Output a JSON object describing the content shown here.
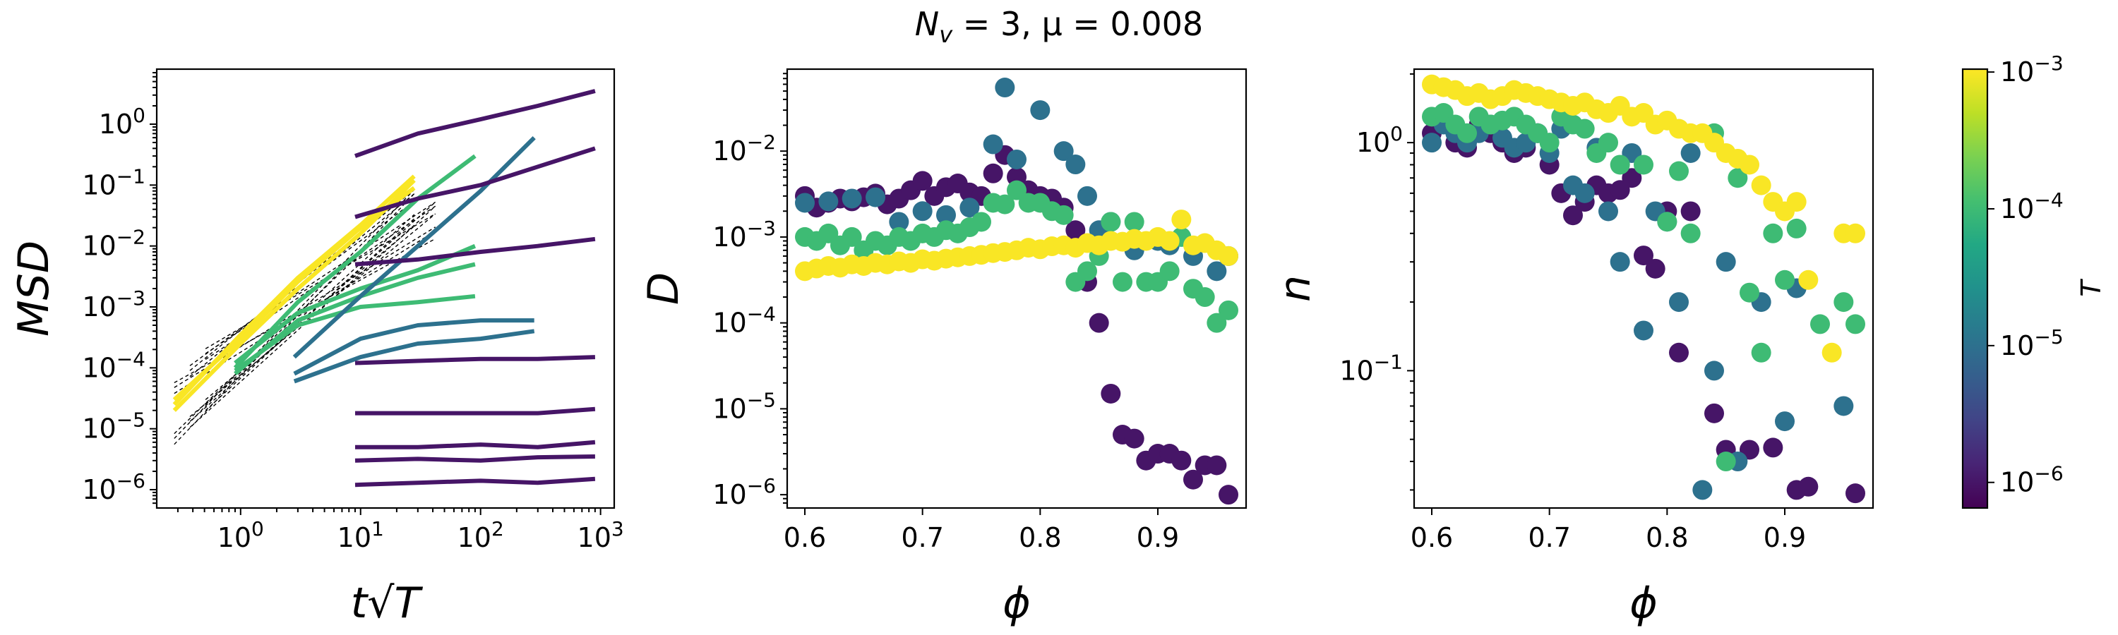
{
  "figure": {
    "title": "N_v = 3, μ = 0.008"
  },
  "colorbar": {
    "label": "T",
    "ticks": [
      "10^-3",
      "10^-4",
      "10^-5",
      "10^-6"
    ],
    "range": [
      6.5e-07,
      0.00105
    ],
    "palette": [
      "#440154",
      "#482475",
      "#414487",
      "#355f8d",
      "#2a788e",
      "#21918c",
      "#22a884",
      "#44bf70",
      "#7ad151",
      "#bddf26",
      "#fde725"
    ]
  },
  "chart_data": [
    {
      "type": "line",
      "name": "msd-panel",
      "xlabel": "t√T",
      "ylabel": "MSD",
      "xscale": "log",
      "yscale": "log",
      "xlim": [
        0.2,
        1300
      ],
      "ylim": [
        5e-07,
        8
      ],
      "xticks": [
        1,
        10,
        100,
        1000
      ],
      "yticks": [
        1e-06,
        1e-05,
        0.0001,
        0.001,
        0.01,
        0.1,
        1
      ],
      "series": [
        {
          "T": 0.001,
          "x": [
            0.28,
            1,
            3,
            10,
            28
          ],
          "y": [
            2e-05,
            0.00025,
            0.002,
            0.016,
            0.12
          ]
        },
        {
          "T": 0.001,
          "x": [
            0.28,
            1,
            3,
            10,
            28
          ],
          "y": [
            3e-05,
            0.0003,
            0.0026,
            0.02,
            0.09
          ]
        },
        {
          "T": 0.001,
          "x": [
            0.28,
            1,
            3,
            10,
            28
          ],
          "y": [
            2.5e-05,
            0.00035,
            0.003,
            0.022,
            0.14
          ]
        },
        {
          "T": 0.0001,
          "x": [
            0.9,
            3,
            10,
            30,
            90
          ],
          "y": [
            0.0001,
            0.0012,
            0.008,
            0.06,
            0.3
          ]
        },
        {
          "T": 0.0001,
          "x": [
            0.9,
            3,
            10,
            30,
            90
          ],
          "y": [
            8e-05,
            0.0006,
            0.0015,
            0.003,
            0.005
          ]
        },
        {
          "T": 0.0001,
          "x": [
            0.9,
            3,
            10,
            30,
            90
          ],
          "y": [
            0.00012,
            0.0008,
            0.002,
            0.004,
            0.01
          ]
        },
        {
          "T": 0.0001,
          "x": [
            0.9,
            3,
            10,
            30,
            90
          ],
          "y": [
            9e-05,
            0.0005,
            0.001,
            0.0012,
            0.0015
          ]
        },
        {
          "T": 1e-05,
          "x": [
            2.8,
            10,
            30,
            100,
            280
          ],
          "y": [
            0.00015,
            0.0015,
            0.01,
            0.08,
            0.6
          ]
        },
        {
          "T": 1e-05,
          "x": [
            2.8,
            10,
            30,
            100,
            280
          ],
          "y": [
            6e-05,
            0.00015,
            0.00025,
            0.0003,
            0.0004
          ]
        },
        {
          "T": 1e-05,
          "x": [
            2.8,
            10,
            30,
            100,
            280
          ],
          "y": [
            8e-05,
            0.0003,
            0.0005,
            0.0006,
            0.0006
          ]
        },
        {
          "T": 1e-06,
          "x": [
            9,
            30,
            100,
            300,
            900
          ],
          "y": [
            0.3,
            0.7,
            1.2,
            2,
            3.5
          ]
        },
        {
          "T": 1e-06,
          "x": [
            9,
            30,
            100,
            300,
            900
          ],
          "y": [
            0.03,
            0.06,
            0.1,
            0.2,
            0.4
          ]
        },
        {
          "T": 1e-06,
          "x": [
            9,
            30,
            100,
            300,
            900
          ],
          "y": [
            0.005,
            0.006,
            0.008,
            0.01,
            0.013
          ]
        },
        {
          "T": 1e-06,
          "x": [
            9,
            30,
            100,
            300,
            900
          ],
          "y": [
            0.00012,
            0.00013,
            0.00014,
            0.00014,
            0.00015
          ]
        },
        {
          "T": 1e-06,
          "x": [
            9,
            30,
            100,
            300,
            900
          ],
          "y": [
            1.8e-05,
            1.8e-05,
            1.8e-05,
            1.8e-05,
            2.1e-05
          ]
        },
        {
          "T": 1e-06,
          "x": [
            9,
            30,
            100,
            300,
            900
          ],
          "y": [
            5e-06,
            5e-06,
            5.5e-06,
            5e-06,
            6e-06
          ]
        },
        {
          "T": 1e-06,
          "x": [
            9,
            30,
            100,
            300,
            900
          ],
          "y": [
            3e-06,
            3.2e-06,
            3e-06,
            3.4e-06,
            3.5e-06
          ]
        },
        {
          "T": 1e-06,
          "x": [
            9,
            30,
            100,
            300,
            900
          ],
          "y": [
            1.2e-06,
            1.3e-06,
            1.4e-06,
            1.3e-06,
            1.5e-06
          ]
        }
      ]
    },
    {
      "type": "scatter",
      "name": "d-panel",
      "xlabel": "ϕ",
      "ylabel": "D",
      "xscale": "linear",
      "yscale": "log",
      "xlim": [
        0.585,
        0.975
      ],
      "ylim": [
        7e-07,
        0.09
      ],
      "xticks": [
        0.6,
        0.7,
        0.8,
        0.9
      ],
      "yticks": [
        1e-06,
        1e-05,
        0.0001,
        0.001,
        0.01
      ],
      "series": [
        {
          "T": 1e-06,
          "x": [
            0.6,
            0.61,
            0.62,
            0.63,
            0.64,
            0.65,
            0.66,
            0.67,
            0.68,
            0.69,
            0.7,
            0.71,
            0.72,
            0.73,
            0.74,
            0.75,
            0.76,
            0.77,
            0.78,
            0.79,
            0.8,
            0.81,
            0.82,
            0.83,
            0.84,
            0.85,
            0.86,
            0.87,
            0.88,
            0.89,
            0.9,
            0.91,
            0.92,
            0.93,
            0.94,
            0.95,
            0.96
          ],
          "y": [
            0.003,
            0.0022,
            0.0025,
            0.0028,
            0.0026,
            0.0029,
            0.0032,
            0.0024,
            0.0028,
            0.0035,
            0.0045,
            0.003,
            0.0038,
            0.0042,
            0.0033,
            0.003,
            0.0055,
            0.009,
            0.005,
            0.0035,
            0.003,
            0.0028,
            0.0022,
            0.0012,
            0.0003,
            0.0001,
            1.5e-05,
            5e-06,
            4.5e-06,
            2.5e-06,
            3e-06,
            3e-06,
            2.5e-06,
            1.5e-06,
            2.2e-06,
            2.2e-06,
            1e-06
          ]
        },
        {
          "T": 1e-05,
          "x": [
            0.6,
            0.62,
            0.64,
            0.66,
            0.68,
            0.7,
            0.72,
            0.74,
            0.76,
            0.77,
            0.78,
            0.8,
            0.82,
            0.83,
            0.84,
            0.85,
            0.86,
            0.88,
            0.9,
            0.91,
            0.93,
            0.95,
            0.96
          ],
          "y": [
            0.0025,
            0.0026,
            0.0028,
            0.0029,
            0.0015,
            0.002,
            0.0018,
            0.0022,
            0.012,
            0.055,
            0.008,
            0.03,
            0.01,
            0.007,
            0.003,
            0.0012,
            0.0015,
            0.0007,
            0.0009,
            0.0008,
            0.0006,
            0.0004,
            0.0006
          ]
        },
        {
          "T": 0.0001,
          "x": [
            0.6,
            0.61,
            0.62,
            0.63,
            0.64,
            0.65,
            0.66,
            0.67,
            0.68,
            0.69,
            0.7,
            0.71,
            0.72,
            0.73,
            0.74,
            0.75,
            0.76,
            0.77,
            0.78,
            0.79,
            0.8,
            0.81,
            0.82,
            0.83,
            0.84,
            0.85,
            0.86,
            0.87,
            0.88,
            0.89,
            0.9,
            0.91,
            0.92,
            0.93,
            0.94,
            0.95,
            0.96
          ],
          "y": [
            0.001,
            0.0009,
            0.0011,
            0.0008,
            0.001,
            0.0007,
            0.0009,
            0.0008,
            0.001,
            0.0009,
            0.0011,
            0.001,
            0.0012,
            0.0011,
            0.0013,
            0.0015,
            0.0025,
            0.0024,
            0.0035,
            0.0025,
            0.0025,
            0.002,
            0.0018,
            0.0003,
            0.0004,
            0.0006,
            0.0015,
            0.0003,
            0.0015,
            0.0003,
            0.0003,
            0.0004,
            0.001,
            0.00025,
            0.0002,
            0.0001,
            0.00014
          ]
        },
        {
          "T": 0.001,
          "x": [
            0.6,
            0.61,
            0.62,
            0.63,
            0.64,
            0.65,
            0.66,
            0.67,
            0.68,
            0.69,
            0.7,
            0.71,
            0.72,
            0.73,
            0.74,
            0.75,
            0.76,
            0.77,
            0.78,
            0.79,
            0.8,
            0.81,
            0.82,
            0.83,
            0.84,
            0.85,
            0.86,
            0.87,
            0.88,
            0.89,
            0.9,
            0.91,
            0.92,
            0.93,
            0.94,
            0.95,
            0.96
          ],
          "y": [
            0.0004,
            0.00043,
            0.00046,
            0.00044,
            0.00048,
            0.00046,
            0.0005,
            0.00048,
            0.00052,
            0.0005,
            0.00055,
            0.00053,
            0.00056,
            0.00058,
            0.0006,
            0.00062,
            0.00065,
            0.00067,
            0.0007,
            0.00075,
            0.00072,
            0.00078,
            0.0008,
            0.00075,
            0.00085,
            0.0008,
            0.0009,
            0.00088,
            0.00095,
            0.0009,
            0.001,
            0.0009,
            0.0016,
            0.0008,
            0.00085,
            0.0007,
            0.0006
          ]
        }
      ]
    },
    {
      "type": "scatter",
      "name": "n-panel",
      "xlabel": "ϕ",
      "ylabel": "n",
      "xscale": "linear",
      "yscale": "log",
      "xlim": [
        0.585,
        0.975
      ],
      "ylim": [
        0.025,
        2.1
      ],
      "xticks": [
        0.6,
        0.7,
        0.8,
        0.9
      ],
      "yticks": [
        0.1,
        1.0
      ],
      "series": [
        {
          "T": 1e-06,
          "x": [
            0.6,
            0.61,
            0.62,
            0.63,
            0.64,
            0.65,
            0.66,
            0.67,
            0.68,
            0.69,
            0.7,
            0.71,
            0.72,
            0.73,
            0.74,
            0.75,
            0.76,
            0.77,
            0.78,
            0.79,
            0.8,
            0.81,
            0.82,
            0.84,
            0.85,
            0.87,
            0.89,
            0.91,
            0.92,
            0.96
          ],
          "y": [
            1.1,
            1.3,
            1.0,
            0.95,
            1.2,
            1.1,
            1.0,
            0.9,
            0.95,
            1.1,
            0.8,
            0.6,
            0.48,
            0.55,
            0.65,
            0.6,
            0.62,
            0.7,
            0.32,
            0.28,
            0.5,
            0.12,
            0.5,
            0.065,
            0.045,
            0.045,
            0.046,
            0.03,
            0.031,
            0.029
          ]
        },
        {
          "T": 1e-05,
          "x": [
            0.6,
            0.61,
            0.62,
            0.63,
            0.64,
            0.65,
            0.66,
            0.67,
            0.68,
            0.69,
            0.7,
            0.71,
            0.72,
            0.73,
            0.74,
            0.75,
            0.76,
            0.77,
            0.78,
            0.79,
            0.8,
            0.81,
            0.82,
            0.83,
            0.84,
            0.85,
            0.86,
            0.88,
            0.9,
            0.91,
            0.95
          ],
          "y": [
            1.0,
            1.2,
            1.1,
            1.0,
            1.1,
            1.2,
            1.05,
            0.95,
            1.0,
            1.1,
            0.9,
            1.15,
            0.65,
            0.6,
            0.95,
            0.5,
            0.3,
            0.9,
            0.15,
            0.5,
            0.45,
            0.2,
            0.9,
            0.03,
            0.1,
            0.3,
            0.04,
            0.2,
            0.06,
            0.23,
            0.07
          ]
        },
        {
          "T": 0.0001,
          "x": [
            0.6,
            0.61,
            0.62,
            0.63,
            0.64,
            0.65,
            0.66,
            0.67,
            0.68,
            0.69,
            0.7,
            0.71,
            0.72,
            0.73,
            0.74,
            0.75,
            0.76,
            0.78,
            0.8,
            0.81,
            0.82,
            0.84,
            0.85,
            0.86,
            0.87,
            0.88,
            0.89,
            0.9,
            0.91,
            0.93,
            0.95,
            0.96
          ],
          "y": [
            1.3,
            1.35,
            1.2,
            1.1,
            1.3,
            1.2,
            1.25,
            1.3,
            1.2,
            1.1,
            1.0,
            1.3,
            1.2,
            1.15,
            0.9,
            1.0,
            0.8,
            0.8,
            0.45,
            0.75,
            0.4,
            1.1,
            0.04,
            0.7,
            0.22,
            0.12,
            0.4,
            0.25,
            0.42,
            0.16,
            0.2,
            0.16
          ]
        },
        {
          "T": 0.001,
          "x": [
            0.6,
            0.61,
            0.62,
            0.63,
            0.64,
            0.65,
            0.66,
            0.67,
            0.68,
            0.69,
            0.7,
            0.71,
            0.72,
            0.73,
            0.74,
            0.75,
            0.76,
            0.77,
            0.78,
            0.79,
            0.8,
            0.81,
            0.82,
            0.83,
            0.84,
            0.85,
            0.86,
            0.87,
            0.88,
            0.89,
            0.9,
            0.91,
            0.92,
            0.94,
            0.95,
            0.96
          ],
          "y": [
            1.8,
            1.75,
            1.7,
            1.6,
            1.65,
            1.55,
            1.6,
            1.7,
            1.65,
            1.6,
            1.55,
            1.5,
            1.45,
            1.5,
            1.4,
            1.35,
            1.45,
            1.3,
            1.35,
            1.2,
            1.25,
            1.15,
            1.1,
            1.1,
            1.0,
            0.9,
            0.85,
            0.8,
            0.65,
            0.55,
            0.5,
            0.55,
            0.25,
            0.12,
            0.4,
            0.4
          ]
        }
      ]
    }
  ]
}
